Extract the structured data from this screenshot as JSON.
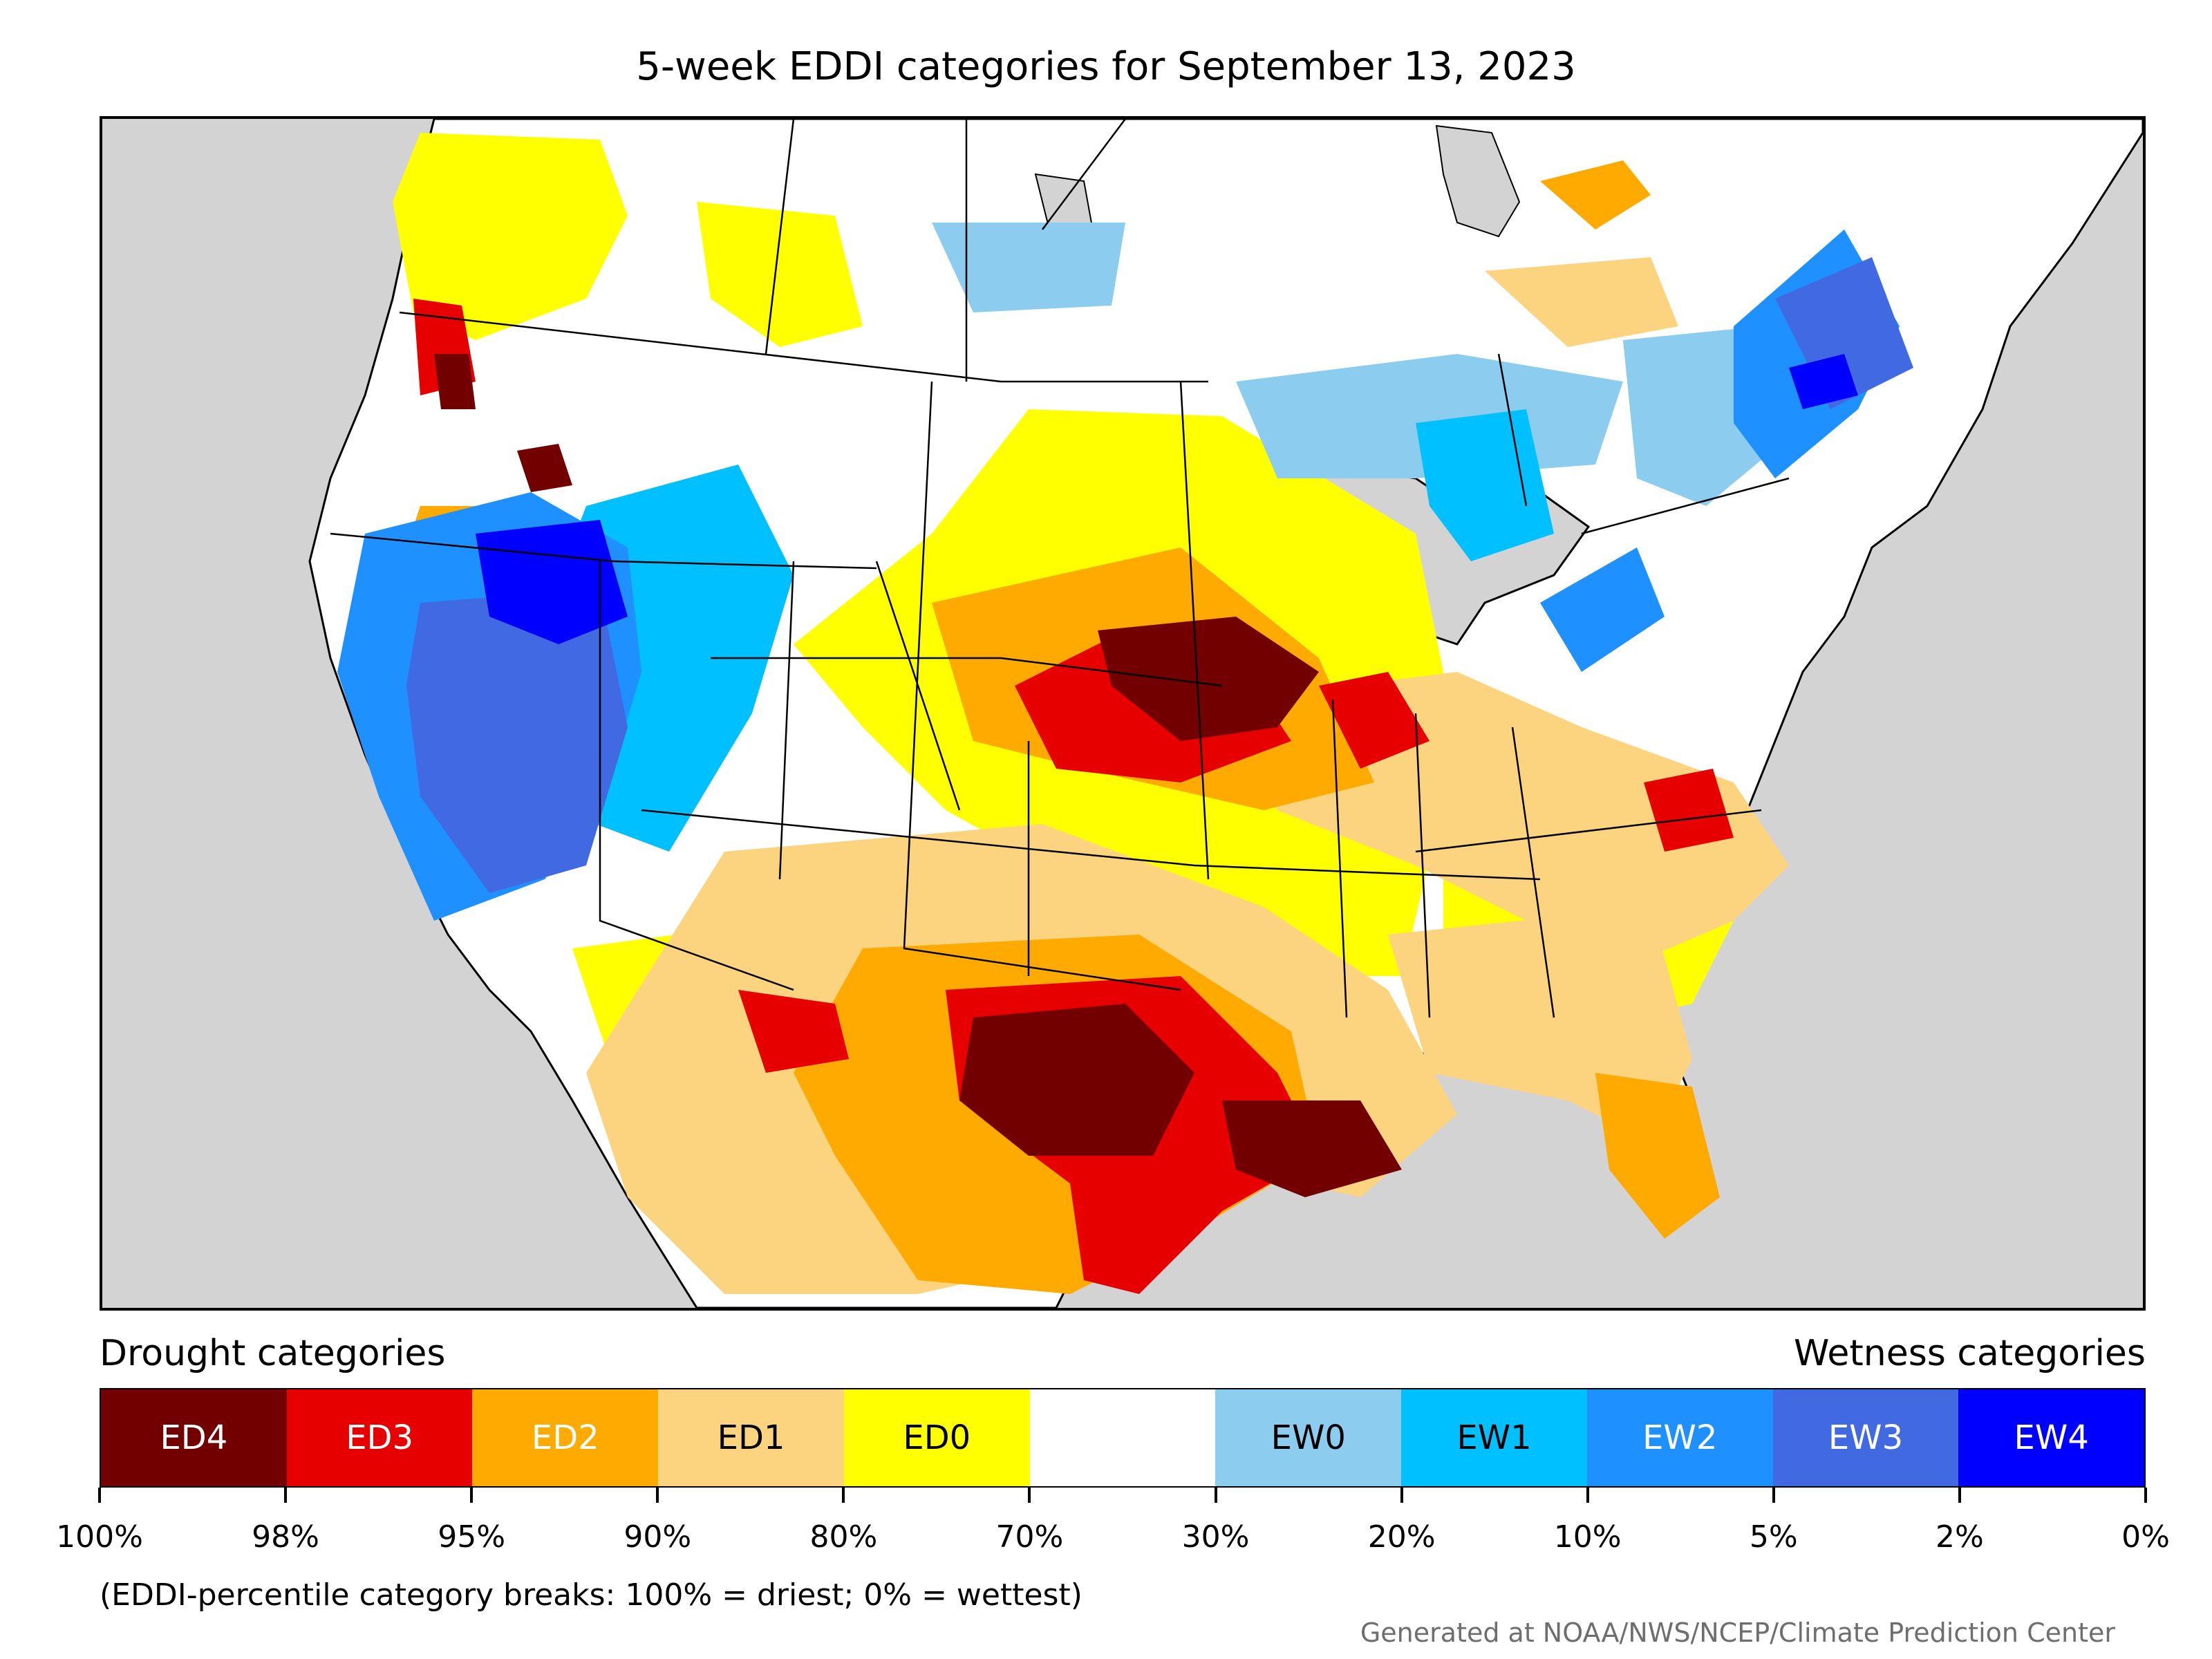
{
  "title": "5-week EDDI categories for September 13, 2023",
  "legend": {
    "drought_heading": "Drought categories",
    "wetness_heading": "Wetness categories",
    "categories": [
      {
        "label": "ED4",
        "color": "#730000",
        "text_color": "#ffffff"
      },
      {
        "label": "ED3",
        "color": "#e60000",
        "text_color": "#ffffff"
      },
      {
        "label": "ED2",
        "color": "#ffaa00",
        "text_color": "#ffffff"
      },
      {
        "label": "ED1",
        "color": "#fcd37f",
        "text_color": "#000000"
      },
      {
        "label": "ED0",
        "color": "#ffff00",
        "text_color": "#000000"
      },
      {
        "label": "",
        "color": "#ffffff",
        "text_color": "#000000"
      },
      {
        "label": "EW0",
        "color": "#8ccdef",
        "text_color": "#000000"
      },
      {
        "label": "EW1",
        "color": "#00c0ff",
        "text_color": "#000000"
      },
      {
        "label": "EW2",
        "color": "#1e90ff",
        "text_color": "#ffffff"
      },
      {
        "label": "EW3",
        "color": "#4169e1",
        "text_color": "#ffffff"
      },
      {
        "label": "EW4",
        "color": "#0000ff",
        "text_color": "#ffffff"
      }
    ],
    "tick_labels": [
      "100%",
      "98%",
      "95%",
      "90%",
      "80%",
      "70%",
      "30%",
      "20%",
      "10%",
      "5%",
      "2%",
      "0%"
    ]
  },
  "note": "(EDDI-percentile category breaks: 100% = driest; 0% = wettest)",
  "credit": "Generated at NOAA/NWS/NCEP/Climate Prediction Center",
  "map": {
    "background_color": "#d3d3d3",
    "land_color": "#ffffff",
    "border_color": "#000000"
  }
}
